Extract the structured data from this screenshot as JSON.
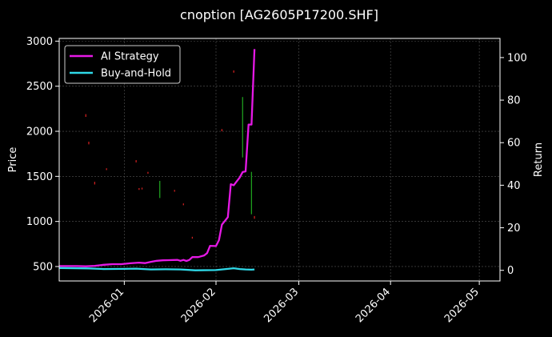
{
  "chart_data": {
    "type": "line",
    "title": "cnoption [AG2605P17200.SHF]",
    "ylabel_left": "Price",
    "ylabel_right": "Return",
    "xlabel": "",
    "x_ticks": [
      "2026-01",
      "2026-02",
      "2026-03",
      "2026-04",
      "2026-05"
    ],
    "x_range": [
      "2025-12-10",
      "2026-05-08"
    ],
    "y_left_ticks": [
      500,
      1000,
      1500,
      2000,
      2500,
      3000
    ],
    "y_left_range": [
      340,
      3030
    ],
    "y_right_ticks": [
      0,
      20,
      40,
      60,
      80,
      100
    ],
    "y_right_range": [
      -5,
      109
    ],
    "grid": true,
    "legend_position": "top-left",
    "colors": {
      "background": "#000000",
      "ai_strategy": "#e619e6",
      "buy_and_hold": "#2fd9e8",
      "candle_up": "#1e9e1e",
      "candle_down": "#cc1f1f",
      "grid": "#555555",
      "axis": "#ffffff"
    },
    "series": [
      {
        "name": "AI Strategy",
        "axis": "right",
        "points": [
          [
            "2025-12-10",
            2.0
          ],
          [
            "2025-12-13",
            2.0
          ],
          [
            "2025-12-16",
            2.0
          ],
          [
            "2025-12-19",
            1.9
          ],
          [
            "2025-12-22",
            2.1
          ],
          [
            "2025-12-25",
            2.6
          ],
          [
            "2025-12-28",
            2.9
          ],
          [
            "2025-12-31",
            2.9
          ],
          [
            "2026-01-03",
            3.3
          ],
          [
            "2026-01-06",
            3.6
          ],
          [
            "2026-01-08",
            3.4
          ],
          [
            "2026-01-10",
            4.0
          ],
          [
            "2026-01-12",
            4.5
          ],
          [
            "2026-01-14",
            4.7
          ],
          [
            "2026-01-16",
            4.8
          ],
          [
            "2026-01-19",
            4.9
          ],
          [
            "2026-01-20",
            4.5
          ],
          [
            "2026-01-21",
            4.9
          ],
          [
            "2026-01-22",
            4.4
          ],
          [
            "2026-01-23",
            4.9
          ],
          [
            "2026-01-24",
            6.2
          ],
          [
            "2026-01-25",
            6.2
          ],
          [
            "2026-01-26",
            6.2
          ],
          [
            "2026-01-28",
            7.0
          ],
          [
            "2026-01-29",
            8.1
          ],
          [
            "2026-01-30",
            11.5
          ],
          [
            "2026-02-01",
            11.4
          ],
          [
            "2026-02-02",
            14.2
          ],
          [
            "2026-02-03",
            21.5
          ],
          [
            "2026-02-05",
            25.0
          ],
          [
            "2026-02-06",
            40.5
          ],
          [
            "2026-02-07",
            40.0
          ],
          [
            "2026-02-08",
            41.8
          ],
          [
            "2026-02-09",
            43.6
          ],
          [
            "2026-02-10",
            46.2
          ],
          [
            "2026-02-11",
            46.5
          ],
          [
            "2026-02-12",
            68.5
          ],
          [
            "2026-02-13",
            68.5
          ],
          [
            "2026-02-14",
            104.0
          ]
        ]
      },
      {
        "name": "Buy-and-Hold",
        "axis": "right",
        "points": [
          [
            "2025-12-10",
            1.1
          ],
          [
            "2025-12-20",
            0.9
          ],
          [
            "2025-12-25",
            0.6
          ],
          [
            "2026-01-01",
            0.7
          ],
          [
            "2026-01-05",
            0.8
          ],
          [
            "2026-01-10",
            0.4
          ],
          [
            "2026-01-15",
            0.5
          ],
          [
            "2026-01-20",
            0.4
          ],
          [
            "2026-01-25",
            0.0
          ],
          [
            "2026-02-01",
            0.1
          ],
          [
            "2026-02-03",
            0.4
          ],
          [
            "2026-02-05",
            0.7
          ],
          [
            "2026-02-07",
            1.0
          ],
          [
            "2026-02-09",
            0.6
          ],
          [
            "2026-02-11",
            0.4
          ],
          [
            "2026-02-13",
            0.3
          ],
          [
            "2026-02-14",
            0.4
          ]
        ]
      }
    ],
    "candles": [
      {
        "date": "2025-12-19",
        "direction": "down",
        "low": 2160,
        "high": 2190
      },
      {
        "date": "2025-12-20",
        "direction": "down",
        "low": 1855,
        "high": 1885
      },
      {
        "date": "2025-12-22",
        "direction": "down",
        "low": 1410,
        "high": 1440
      },
      {
        "date": "2025-12-26",
        "direction": "down",
        "low": 1570,
        "high": 1590
      },
      {
        "date": "2026-01-05",
        "direction": "down",
        "low": 1655,
        "high": 1680
      },
      {
        "date": "2026-01-06",
        "direction": "down",
        "low": 1350,
        "high": 1370
      },
      {
        "date": "2026-01-07",
        "direction": "down",
        "low": 1355,
        "high": 1375
      },
      {
        "date": "2026-01-09",
        "direction": "down",
        "low": 1530,
        "high": 1550
      },
      {
        "date": "2026-01-13",
        "direction": "up",
        "low": 1260,
        "high": 1450
      },
      {
        "date": "2026-01-18",
        "direction": "down",
        "low": 1330,
        "high": 1350
      },
      {
        "date": "2026-01-21",
        "direction": "down",
        "low": 1180,
        "high": 1200
      },
      {
        "date": "2026-01-24",
        "direction": "down",
        "low": 810,
        "high": 830
      },
      {
        "date": "2026-02-03",
        "direction": "down",
        "low": 2000,
        "high": 2025
      },
      {
        "date": "2026-02-07",
        "direction": "down",
        "low": 2650,
        "high": 2675
      },
      {
        "date": "2026-02-10",
        "direction": "up",
        "low": 1710,
        "high": 2380
      },
      {
        "date": "2026-02-13",
        "direction": "up",
        "low": 1080,
        "high": 1550
      },
      {
        "date": "2026-02-14",
        "direction": "down",
        "low": 1030,
        "high": 1060
      }
    ]
  }
}
